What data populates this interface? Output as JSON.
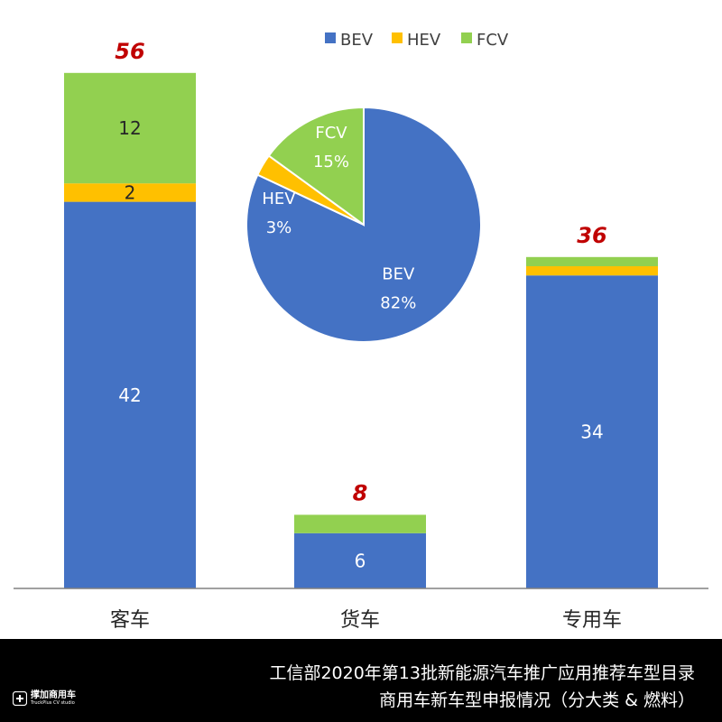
{
  "chart_data": [
    {
      "type": "bar",
      "stacked": true,
      "categories": [
        "客车",
        "货车",
        "专用车"
      ],
      "series": [
        {
          "name": "BEV",
          "values": [
            42,
            6,
            34
          ],
          "color": "#4472C4"
        },
        {
          "name": "HEV",
          "values": [
            2,
            0,
            1
          ],
          "color": "#FFC000"
        },
        {
          "name": "FCV",
          "values": [
            12,
            2,
            1
          ],
          "color": "#92D050"
        }
      ],
      "segment_labels": [
        [
          "42",
          "2",
          "12"
        ],
        [
          "6",
          "",
          ""
        ],
        [
          "34",
          "",
          ""
        ]
      ],
      "totals": [
        "56",
        "8",
        "36"
      ],
      "total_label_color": "#C00000",
      "ylim": [
        0,
        60
      ],
      "grid": false
    },
    {
      "type": "pie",
      "slices": [
        {
          "name": "BEV",
          "percent": "82%",
          "value": 82,
          "color": "#4472C4"
        },
        {
          "name": "HEV",
          "percent": "3%",
          "value": 3,
          "color": "#FFC000"
        },
        {
          "name": "FCV",
          "percent": "15%",
          "value": 15,
          "color": "#92D050"
        }
      ],
      "legend": {
        "placement": "top",
        "items": [
          "BEV",
          "HEV",
          "FCV"
        ]
      }
    }
  ],
  "footer": {
    "line1": "工信部2020年第13批新能源汽车推广应用推荐车型目录",
    "line2": "商用车新车型申报情况（分大类 & 燃料）"
  },
  "logo": {
    "name": "撑加商用车",
    "subtitle": "TruckPlus CV studio",
    "icon": "truckplus-logo-icon"
  }
}
